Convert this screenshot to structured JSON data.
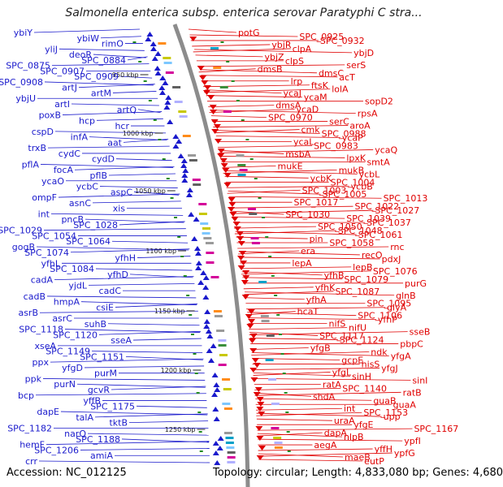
{
  "title": "Salmonella enterica subsp. enterica serovar Paratyphi C stra...",
  "footer": {
    "accession": "Accession: NC_012125",
    "summary": "Topology: circular; Length: 4,833,080 bp; Genes: 4,680"
  },
  "colors": {
    "reverse": "#1a1acc",
    "forward": "#e00000",
    "backbone": "#8c8c8c",
    "tick": "#228b22"
  },
  "kbp_markers": [
    "950 kbp",
    "1000 kbp",
    "1050 kbp",
    "1100 kbp",
    "1150 kbp",
    "1200 kbp",
    "1250 kbp"
  ],
  "left_labels": [
    "ybiY",
    "ybiW",
    "rimO",
    "yliJ",
    "deoR",
    "SPC_0884",
    "SPC_0875",
    "SPC_0907",
    "SPC_0909",
    "SPC_0908",
    "artJ",
    "artM",
    "ybjU",
    "artI",
    "artQ",
    "poxB",
    "hcp",
    "hcr",
    "cspD",
    "infA",
    "aat",
    "trxB",
    "cydC",
    "cydD",
    "pflA",
    "focA",
    "pflB",
    "ycaO",
    "ycbC",
    "aspC",
    "ompF",
    "asnC",
    "xis",
    "int",
    "pncB",
    "SPC_1028",
    "SPC_1029",
    "SPC_1054",
    "SPC_1064",
    "gogB",
    "SPC_1074",
    "yfhH",
    "yfhL",
    "SPC_1084",
    "yfhD",
    "cadA",
    "yjdL",
    "cadC",
    "cadB",
    "hmpA",
    "csiE",
    "asrB",
    "asrC",
    "suhB",
    "SPC_1118",
    "SPC_1120",
    "sseA",
    "xseA",
    "SPC_1149",
    "SPC_1151",
    "ppx",
    "yfgD",
    "purM",
    "ppk",
    "purN",
    "gcvR",
    "bcp",
    "yffB",
    "SPC_1175",
    "dapE",
    "talA",
    "tktB",
    "SPC_1182",
    "narQ",
    "SPC_1188",
    "hemF",
    "SPC_1206",
    "amiA",
    "crr"
  ],
  "right_labels": [
    "potG",
    "SPC_0925",
    "SPC_0932",
    "ybjR",
    "clpA",
    "ybjD",
    "ybjZ",
    "clpS",
    "serS",
    "dmsB",
    "dmsC",
    "acT",
    "lrp",
    "ftsK",
    "lolA",
    "ycaJ",
    "ycaM",
    "sopD2",
    "dmsA",
    "ycaD",
    "rpsA",
    "SPC_0970",
    "serC",
    "aroA",
    "cmk",
    "SPC_0988",
    "ycaP",
    "ycaL",
    "SPC_0983",
    "ycaQ",
    "msbA",
    "lpxK",
    "smtA",
    "mukE",
    "mukB",
    "ycbL",
    "ycbK",
    "SPC_1004",
    "ycbB",
    "SPC_1003",
    "SPC_1005",
    "SPC_1013",
    "SPC_1017",
    "SPC_1022",
    "SPC_1027",
    "SPC_1030",
    "SPC_1039",
    "SPC_1037",
    "SPC_1050",
    "SPC_1048",
    "SPC_1061",
    "pin",
    "SPC_1058",
    "rnc",
    "era",
    "recO",
    "pdxJ",
    "lepA",
    "lepB",
    "SPC_1076",
    "yfhB",
    "SPC_1079",
    "purG",
    "yfhK",
    "SPC_1087",
    "glnB",
    "yfhA",
    "SPC_1095",
    "glyA",
    "hcaT",
    "SPC_1106",
    "yfhP",
    "nifS",
    "nifU",
    "sseB",
    "SPC_1117",
    "SPC_1124",
    "pbpC",
    "yfgB",
    "ndk",
    "yfgA",
    "gcpE",
    "hisS",
    "yfgJ",
    "yfgL",
    "sinH",
    "sinI",
    "ratA",
    "SPC_1140",
    "ratB",
    "shdA",
    "guaB",
    "guaA",
    "int",
    "SPC_1153",
    "upp",
    "uraA",
    "yfgE",
    "SPC_1167",
    "dapA",
    "nlpB",
    "ypfI",
    "aegA",
    "yffH",
    "ypfG",
    "maeB",
    "eutP"
  ]
}
